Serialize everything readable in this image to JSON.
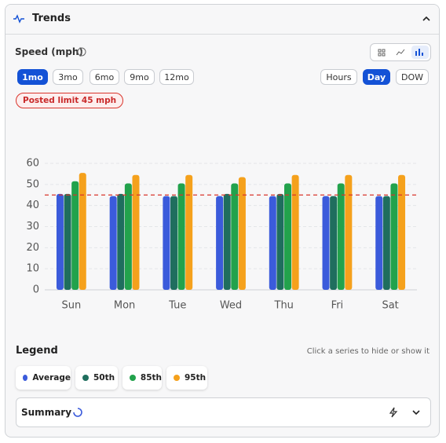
{
  "header": {
    "title": "Trends"
  },
  "metric": {
    "label": "Speed (mph)"
  },
  "ranges": [
    "1mo",
    "3mo",
    "6mo",
    "9mo",
    "12mo"
  ],
  "groupings": [
    "Hours",
    "Day",
    "DOW"
  ],
  "badge": "Posted limit 45 mph",
  "chart_data": {
    "type": "bar",
    "categories": [
      "Sun",
      "Mon",
      "Tue",
      "Wed",
      "Thu",
      "Fri",
      "Sat"
    ],
    "series": [
      {
        "name": "Average",
        "color": "#3b5bdb",
        "values": [
          45.5,
          44.5,
          44.5,
          44.5,
          44.5,
          44.5,
          44.5
        ]
      },
      {
        "name": "50th",
        "color": "#1f6e5e",
        "values": [
          45.5,
          45.5,
          44.5,
          45.5,
          45.5,
          44.5,
          44.5
        ]
      },
      {
        "name": "85th",
        "color": "#22a24c",
        "values": [
          51.5,
          50.5,
          50.5,
          50.5,
          50.5,
          50.5,
          50.5
        ]
      },
      {
        "name": "95th",
        "color": "#f5a11c",
        "values": [
          55.5,
          54.5,
          54.5,
          53.5,
          54.5,
          54.5,
          54.5
        ]
      }
    ],
    "ylim": [
      0,
      60
    ],
    "yticks": [
      0,
      10,
      20,
      30,
      40,
      50,
      60
    ],
    "grid": true,
    "reference_line": 45,
    "reference_color": "#d9342b"
  },
  "legend": {
    "title": "Legend",
    "hint": "Click a series to hide or show it"
  },
  "summary": {
    "title": "Summary"
  }
}
